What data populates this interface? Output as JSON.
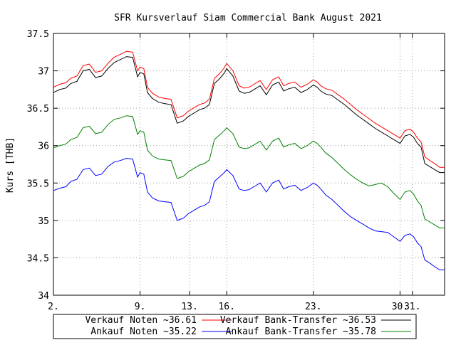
{
  "chart_data": {
    "type": "line",
    "title": "SFR Kursverlauf Siam Commercial Bank August 2021",
    "ylabel": "Kurs [THB]",
    "xlabel": "",
    "ylim": [
      34,
      37.5
    ],
    "xlim": [
      2,
      33.6
    ],
    "grid": true,
    "legend_placement": "bottom",
    "y_ticks": [
      34,
      34.5,
      35,
      35.5,
      36,
      36.5,
      37,
      37.5
    ],
    "y_tick_labels": [
      "34",
      "34.5",
      "35",
      "35.5",
      "36",
      "36.5",
      "37",
      "37.5"
    ],
    "x_ticks": [
      2,
      9,
      13,
      16,
      23,
      30,
      31
    ],
    "x_tick_labels": [
      "2.",
      "9.",
      "13.",
      "16.",
      "23.",
      "30.",
      "31."
    ],
    "x": [
      2.0,
      2.5,
      3.0,
      3.4,
      3.9,
      4.4,
      4.9,
      5.4,
      5.9,
      6.4,
      6.9,
      7.4,
      7.9,
      8.4,
      8.8,
      9.0,
      9.3,
      9.6,
      10.0,
      10.5,
      11.0,
      11.5,
      12.0,
      12.5,
      12.9,
      13.3,
      13.8,
      14.2,
      14.6,
      15.0,
      15.4,
      15.8,
      16.0,
      16.5,
      17.0,
      17.4,
      17.8,
      18.2,
      18.7,
      19.2,
      19.7,
      20.2,
      20.6,
      21.0,
      21.5,
      22.0,
      22.5,
      23.0,
      23.3,
      23.6,
      24.0,
      24.5,
      25.0,
      25.5,
      26.0,
      26.5,
      27.0,
      27.5,
      28.0,
      28.5,
      29.0,
      29.5,
      30.0,
      30.4,
      30.8,
      31.1,
      31.4,
      31.7,
      32.0,
      32.4,
      32.8,
      33.2,
      33.6
    ],
    "series": [
      {
        "name": "Verkauf Noten ~36.61",
        "color": "#ff0000",
        "values": [
          36.78,
          36.82,
          36.84,
          36.9,
          36.93,
          37.07,
          37.09,
          36.98,
          37.0,
          37.1,
          37.18,
          37.22,
          37.26,
          37.25,
          37.0,
          37.05,
          37.03,
          36.78,
          36.7,
          36.65,
          36.63,
          36.62,
          36.37,
          36.4,
          36.46,
          36.5,
          36.55,
          36.57,
          36.62,
          36.9,
          36.96,
          37.04,
          37.1,
          37.0,
          36.8,
          36.77,
          36.78,
          36.82,
          36.87,
          36.75,
          36.88,
          36.92,
          36.8,
          36.83,
          36.85,
          36.78,
          36.82,
          36.88,
          36.85,
          36.8,
          36.76,
          36.74,
          36.68,
          36.62,
          36.55,
          36.48,
          36.42,
          36.36,
          36.3,
          36.25,
          36.2,
          36.15,
          36.1,
          36.2,
          36.22,
          36.18,
          36.1,
          36.05,
          35.85,
          35.8,
          35.76,
          35.71,
          35.71
        ]
      },
      {
        "name": "Verkauf Bank-Transfer ~36.53",
        "color": "#000000",
        "values": [
          36.71,
          36.75,
          36.77,
          36.83,
          36.86,
          37.0,
          37.02,
          36.91,
          36.93,
          37.03,
          37.11,
          37.15,
          37.19,
          37.18,
          36.92,
          36.98,
          36.96,
          36.71,
          36.63,
          36.58,
          36.56,
          36.55,
          36.3,
          36.33,
          36.39,
          36.43,
          36.48,
          36.5,
          36.55,
          36.83,
          36.89,
          36.97,
          37.03,
          36.93,
          36.73,
          36.7,
          36.71,
          36.75,
          36.8,
          36.68,
          36.81,
          36.85,
          36.73,
          36.76,
          36.78,
          36.71,
          36.75,
          36.81,
          36.78,
          36.73,
          36.69,
          36.67,
          36.61,
          36.55,
          36.48,
          36.41,
          36.35,
          36.29,
          36.23,
          36.18,
          36.13,
          36.08,
          36.03,
          36.13,
          36.15,
          36.11,
          36.03,
          35.98,
          35.76,
          35.72,
          35.68,
          35.64,
          35.64
        ]
      },
      {
        "name": "Ankauf Noten ~35.22",
        "color": "#0000ff",
        "values": [
          35.4,
          35.43,
          35.45,
          35.52,
          35.55,
          35.68,
          35.7,
          35.6,
          35.62,
          35.72,
          35.78,
          35.8,
          35.83,
          35.82,
          35.58,
          35.64,
          35.62,
          35.38,
          35.3,
          35.26,
          35.25,
          35.24,
          35.0,
          35.03,
          35.09,
          35.13,
          35.18,
          35.2,
          35.25,
          35.52,
          35.58,
          35.64,
          35.68,
          35.6,
          35.42,
          35.4,
          35.41,
          35.45,
          35.5,
          35.38,
          35.5,
          35.54,
          35.42,
          35.45,
          35.47,
          35.4,
          35.44,
          35.5,
          35.47,
          35.42,
          35.34,
          35.28,
          35.2,
          35.12,
          35.05,
          35.0,
          34.95,
          34.9,
          34.86,
          34.85,
          34.84,
          34.78,
          34.72,
          34.8,
          34.82,
          34.78,
          34.7,
          34.65,
          34.47,
          34.43,
          34.38,
          34.34,
          34.34
        ]
      },
      {
        "name": "Ankauf Bank-Transfer ~35.78",
        "color": "#008000",
        "values": [
          35.97,
          36.0,
          36.02,
          36.08,
          36.11,
          36.24,
          36.26,
          36.16,
          36.18,
          36.28,
          36.35,
          36.37,
          36.4,
          36.39,
          36.15,
          36.2,
          36.18,
          35.94,
          35.86,
          35.82,
          35.81,
          35.8,
          35.56,
          35.59,
          35.65,
          35.69,
          35.74,
          35.76,
          35.81,
          36.08,
          36.14,
          36.2,
          36.24,
          36.16,
          35.98,
          35.96,
          35.97,
          36.01,
          36.06,
          35.94,
          36.06,
          36.1,
          35.98,
          36.01,
          36.03,
          35.96,
          36.0,
          36.06,
          36.03,
          35.98,
          35.9,
          35.84,
          35.76,
          35.68,
          35.61,
          35.55,
          35.5,
          35.46,
          35.48,
          35.5,
          35.45,
          35.36,
          35.28,
          35.38,
          35.4,
          35.35,
          35.26,
          35.2,
          35.02,
          34.98,
          34.94,
          34.9,
          34.9
        ]
      }
    ]
  }
}
